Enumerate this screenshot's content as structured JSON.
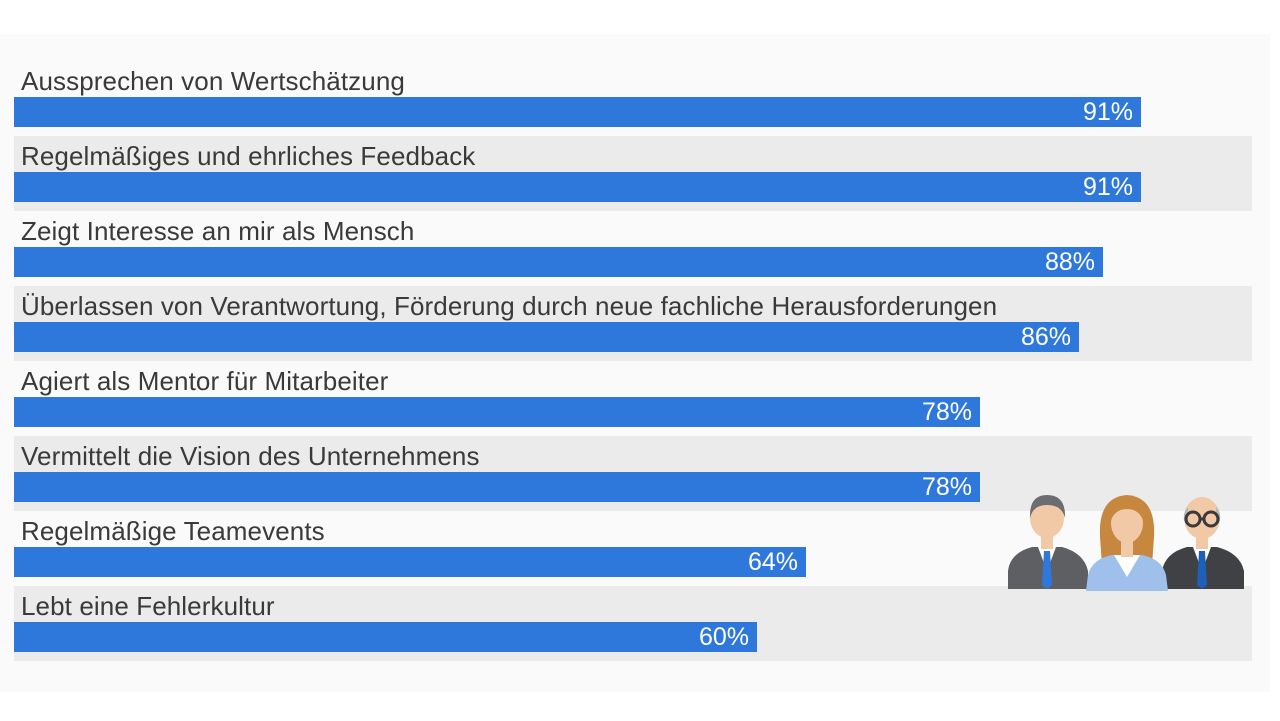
{
  "chart_data": {
    "type": "bar",
    "orientation": "horizontal",
    "categories": [
      "Aussprechen von Wertschätzung",
      "Regelmäßiges und ehrliches Feedback",
      "Zeigt Interesse an mir als Mensch",
      "Überlassen von Verantwortung, Förderung durch neue fachliche Herausforderungen",
      "Agiert als Mentor für Mitarbeiter",
      "Vermittelt die Vision des Unternehmens",
      "Regelmäßige Teamevents",
      "Lebt eine Fehlerkultur"
    ],
    "values": [
      91,
      91,
      88,
      86,
      78,
      78,
      64,
      60
    ],
    "value_labels": [
      "91%",
      "91%",
      "88%",
      "86%",
      "78%",
      "78%",
      "64%",
      "60%"
    ],
    "unit": "%",
    "xlim": [
      0,
      100
    ],
    "grid": false,
    "colors": {
      "bar": "#2e78dc",
      "alt_row": "#ebebeb",
      "text": "#3a3a3a",
      "value_text": "#ffffff"
    }
  },
  "illustration": {
    "icon": "business-people-icon"
  }
}
